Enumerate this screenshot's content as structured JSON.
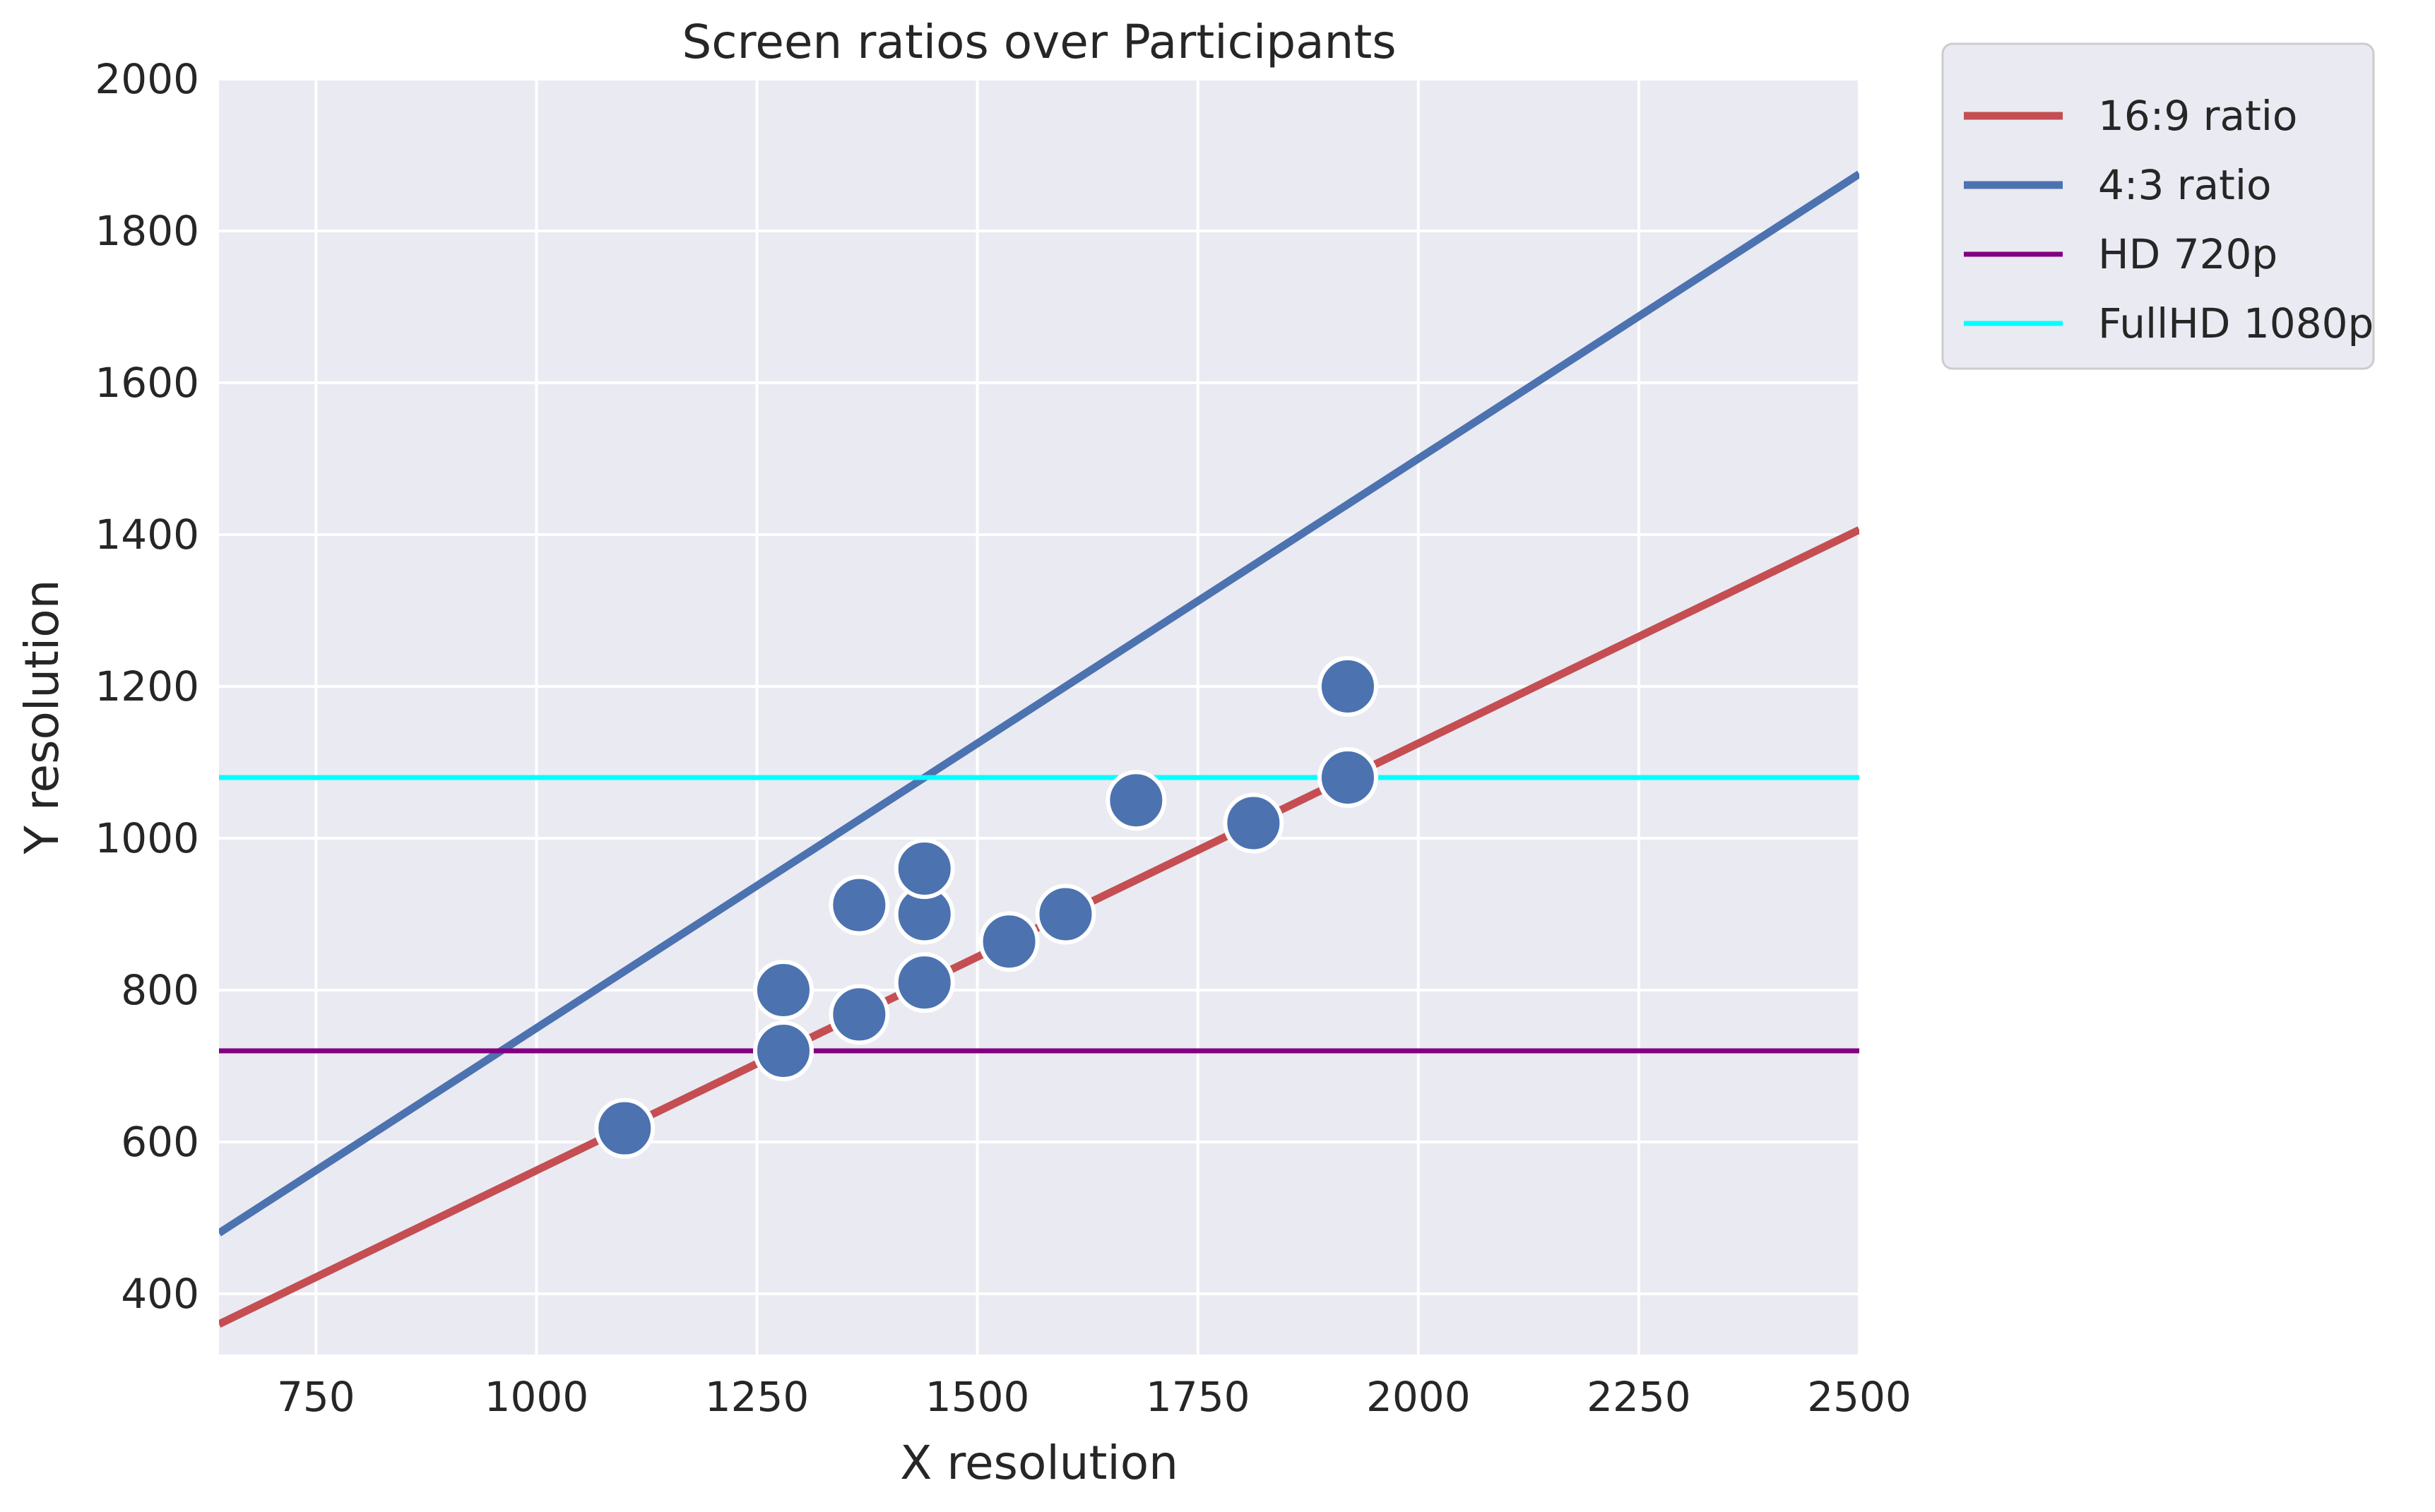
{
  "chart_data": {
    "type": "scatter",
    "title": "Screen ratios over Participants",
    "xlabel": "X resolution",
    "ylabel": "Y resolution",
    "xlim": [
      640,
      2500
    ],
    "ylim": [
      320,
      2000
    ],
    "xticks": [
      750,
      1000,
      1250,
      1500,
      1750,
      2000,
      2250,
      2500
    ],
    "yticks": [
      400,
      600,
      800,
      1000,
      1200,
      1400,
      1600,
      1800,
      2000
    ],
    "grid": true,
    "legend_position": "outside-top-right",
    "points": [
      {
        "x": 1100,
        "y": 618
      },
      {
        "x": 1280,
        "y": 720
      },
      {
        "x": 1280,
        "y": 800
      },
      {
        "x": 1366,
        "y": 768
      },
      {
        "x": 1366,
        "y": 912
      },
      {
        "x": 1440,
        "y": 810
      },
      {
        "x": 1440,
        "y": 900
      },
      {
        "x": 1440,
        "y": 960
      },
      {
        "x": 1536,
        "y": 864
      },
      {
        "x": 1600,
        "y": 900
      },
      {
        "x": 1680,
        "y": 1050
      },
      {
        "x": 1813,
        "y": 1020
      },
      {
        "x": 1920,
        "y": 1080
      },
      {
        "x": 1920,
        "y": 1200
      }
    ],
    "point_color": "#4c72b0",
    "lines": [
      {
        "name": "16:9 ratio",
        "kind": "slope",
        "slope": 0.5625,
        "color": "#c44e52"
      },
      {
        "name": "4:3 ratio",
        "kind": "slope",
        "slope": 0.75,
        "color": "#4c72b0"
      },
      {
        "name": "HD 720p",
        "kind": "horizontal",
        "y": 720,
        "color": "#800080"
      },
      {
        "name": "FullHD 1080p",
        "kind": "horizontal",
        "y": 1080,
        "color": "#00ffff"
      }
    ],
    "plot_background": "#eaeaf2",
    "grid_color": "#ffffff"
  }
}
